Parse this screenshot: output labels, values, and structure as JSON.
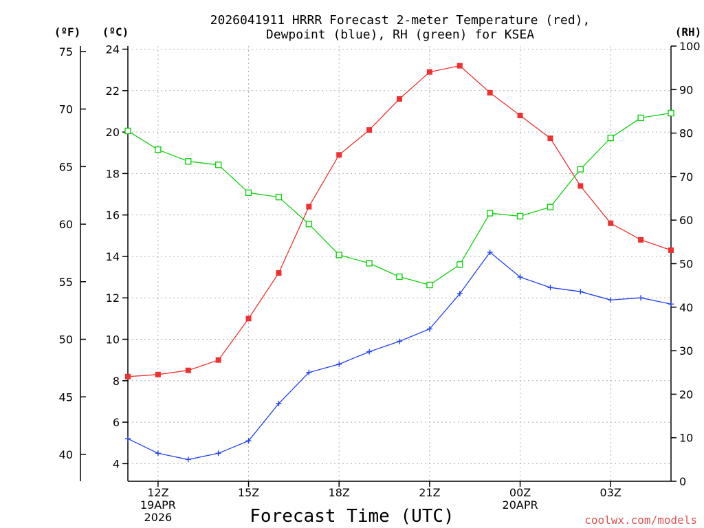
{
  "chart_data": {
    "type": "line",
    "title": [
      "2026041911 HRRR Forecast 2-meter Temperature (red),",
      "Dewpoint (blue), RH (green) for KSEA"
    ],
    "xlabel": "Forecast Time (UTC)",
    "left_outer_unit": "(ºF)",
    "left_inner_unit": "(ºC)",
    "right_unit": "(RH)",
    "credit": "coolwx.com/models",
    "x_hours": [
      0,
      1,
      2,
      3,
      4,
      5,
      6,
      7,
      8,
      9,
      10,
      11,
      12,
      13,
      14,
      15,
      16,
      17,
      18
    ],
    "x_ticks": [
      {
        "hour": 1,
        "lines": [
          "12Z",
          "19APR",
          "2026"
        ]
      },
      {
        "hour": 4,
        "lines": [
          "15Z"
        ]
      },
      {
        "hour": 7,
        "lines": [
          "18Z"
        ]
      },
      {
        "hour": 10,
        "lines": [
          "21Z"
        ]
      },
      {
        "hour": 13,
        "lines": [
          "00Z",
          "20APR"
        ]
      },
      {
        "hour": 16,
        "lines": [
          "03Z"
        ]
      }
    ],
    "celsius_axis": {
      "range": [
        3.15,
        24.15
      ],
      "ticks": [
        4,
        6,
        8,
        10,
        12,
        14,
        16,
        18,
        20,
        22,
        24
      ]
    },
    "fahrenheit_axis": {
      "ticks": [
        40,
        45,
        50,
        55,
        60,
        65,
        70,
        75
      ]
    },
    "rh_axis": {
      "range": [
        0,
        100
      ],
      "ticks": [
        0,
        10,
        20,
        30,
        40,
        50,
        60,
        70,
        80,
        90,
        100
      ]
    },
    "series": [
      {
        "name": "Temperature",
        "color": "#f03030",
        "marker": "filled-square",
        "axis": "celsius",
        "values": [
          8.2,
          8.3,
          8.5,
          9.0,
          11.0,
          13.2,
          16.4,
          18.9,
          20.1,
          21.6,
          22.9,
          23.2,
          21.9,
          20.8,
          19.7,
          17.4,
          15.6,
          14.8,
          14.3
        ]
      },
      {
        "name": "Dewpoint",
        "color": "#2040f0",
        "marker": "plus",
        "axis": "celsius",
        "values": [
          5.2,
          4.5,
          4.2,
          4.5,
          5.1,
          6.9,
          8.4,
          8.8,
          9.4,
          9.9,
          10.5,
          12.2,
          14.2,
          13.0,
          12.5,
          12.3,
          11.9,
          12.0,
          11.7
        ]
      },
      {
        "name": "RH",
        "color": "#10d010",
        "marker": "open-square",
        "axis": "rh",
        "values": [
          80.5,
          76.2,
          73.5,
          72.7,
          66.3,
          65.3,
          59.1,
          52.0,
          50.1,
          47.0,
          45.1,
          49.8,
          61.6,
          60.9,
          63.0,
          71.7,
          78.9,
          83.5,
          84.6
        ]
      }
    ]
  }
}
